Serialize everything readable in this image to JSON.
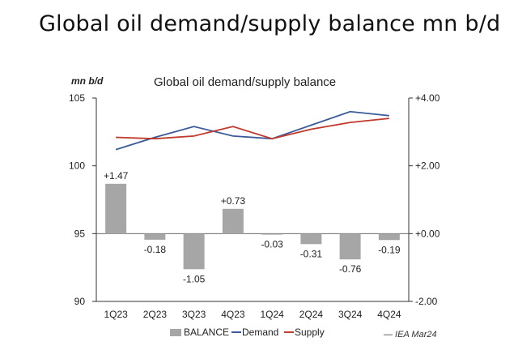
{
  "page_title": "Global oil demand/supply balance mn b/d",
  "chart_data": {
    "type": "bar+line",
    "title": "Global oil demand/supply balance",
    "left_axis_unit": "mn b/d",
    "categories": [
      "1Q23",
      "2Q23",
      "3Q23",
      "4Q23",
      "1Q24",
      "2Q24",
      "3Q24",
      "4Q24"
    ],
    "left_axis": {
      "range": [
        90,
        105
      ],
      "ticks": [
        105,
        100,
        95,
        90
      ]
    },
    "right_axis": {
      "range": [
        -2.0,
        4.0
      ],
      "ticks": [
        "+4.00",
        "+2.00",
        "+0.00",
        "-2.00"
      ]
    },
    "series": [
      {
        "name": "BALANCE",
        "kind": "bar",
        "axis": "right",
        "color": "#a6a6a6",
        "values": [
          1.47,
          -0.18,
          -1.05,
          0.73,
          -0.03,
          -0.31,
          -0.76,
          -0.19
        ],
        "labels": [
          "+1.47",
          "-0.18",
          "-1.05",
          "+0.73",
          "-0.03",
          "-0.31",
          "-0.76",
          "-0.19"
        ]
      },
      {
        "name": "Demand",
        "kind": "line",
        "axis": "left",
        "color": "#3a5a99",
        "values": [
          101.2,
          102.1,
          102.9,
          102.2,
          102.0,
          103.0,
          104.0,
          103.7
        ]
      },
      {
        "name": "Supply",
        "kind": "line",
        "axis": "left",
        "color": "#c0392b",
        "values": [
          102.1,
          102.0,
          102.2,
          102.9,
          102.0,
          102.7,
          103.2,
          103.5
        ]
      }
    ],
    "legend": {
      "placement": "bottom",
      "items": [
        "BALANCE",
        "Demand",
        "Supply"
      ]
    },
    "source": "— IEA Mar24",
    "grid": false
  }
}
